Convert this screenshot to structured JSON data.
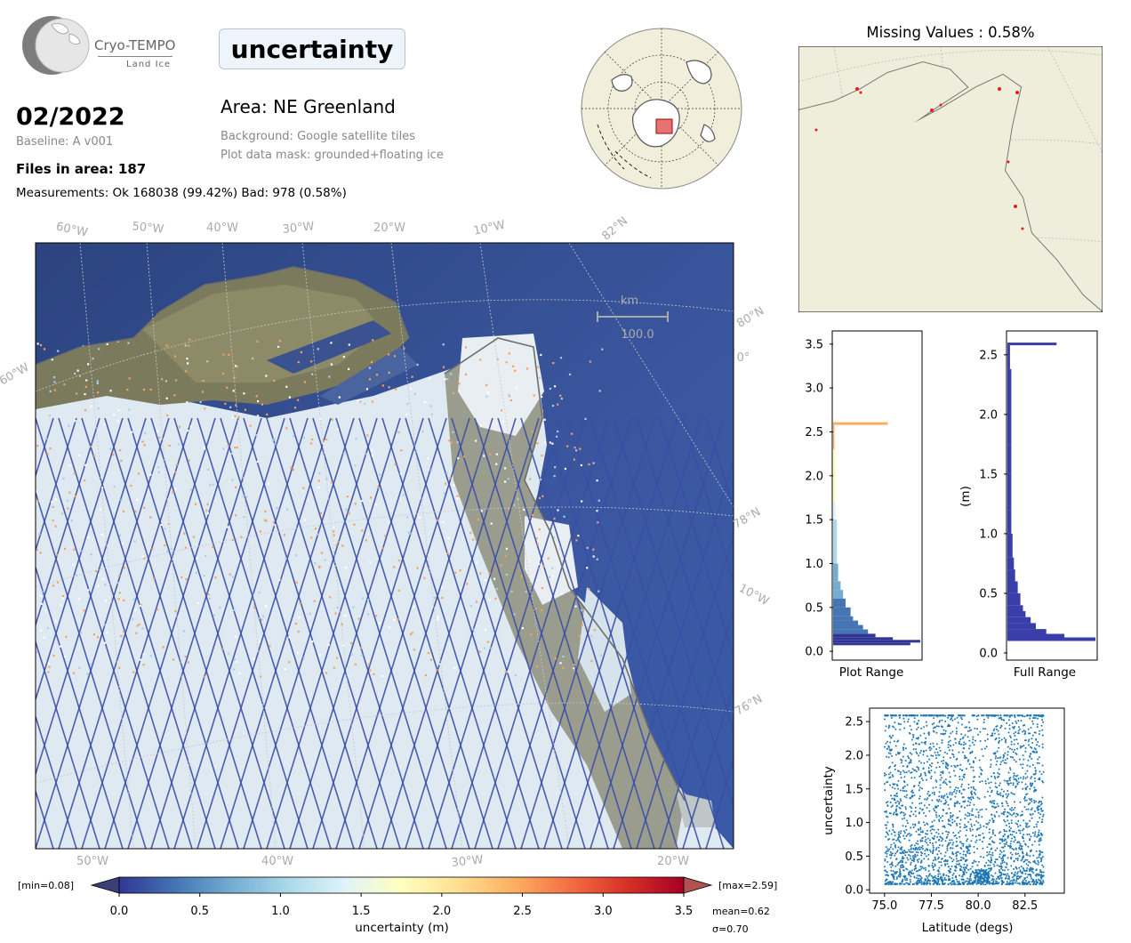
{
  "header": {
    "logo": {
      "name": "Cryo-TEMPO",
      "subtitle": "Land Ice"
    },
    "title": "uncertainty",
    "date": "02/2022",
    "baseline": "Baseline: A v001",
    "files_in_area": "Files in area: 187",
    "measurements": "Measurements: Ok 168038 (99.42%) Bad: 978 (0.58%)",
    "area": "Area: NE Greenland",
    "background": "Background: Google satellite tiles",
    "mask": "Plot data mask: grounded+floating ice"
  },
  "main_map": {
    "top_lon_labels": [
      "60°W",
      "50°W",
      "40°W",
      "30°W",
      "20°W",
      "10°W",
      "82°N"
    ],
    "bottom_lon_labels": [
      "50°W",
      "40°W",
      "30°W",
      "20°W"
    ],
    "left_labels": [
      "60°W"
    ],
    "right_labels": [
      "80°N",
      "0°",
      "78°N",
      "10°W",
      "76°N"
    ],
    "scale_bar": {
      "unit": "km",
      "value": "100.0"
    }
  },
  "missing_panel": {
    "title": "Missing Values : 0.58%"
  },
  "colorbar": {
    "min_label": "[min=0.08]",
    "max_label": "[max=2.59]",
    "ticks": [
      "0.0",
      "0.5",
      "1.0",
      "1.5",
      "2.0",
      "2.5",
      "3.0",
      "3.5"
    ],
    "label": "uncertainty (m)",
    "mean": "mean=0.62",
    "sigma": "σ=0.70",
    "cmap_colors": [
      "#313695",
      "#4575b4",
      "#74add1",
      "#abd9e9",
      "#e0f3f8",
      "#ffffbf",
      "#fee090",
      "#fdae61",
      "#f46d43",
      "#d73027",
      "#a50026"
    ]
  },
  "chart_data": [
    {
      "type": "bar",
      "orientation": "horizontal",
      "xlabel": "Plot Range",
      "ylabel": "",
      "ylim": [
        -0.1,
        3.65
      ],
      "y_ticks": [
        "0.0",
        "0.5",
        "1.0",
        "1.5",
        "2.0",
        "2.5",
        "3.0",
        "3.5"
      ],
      "bins": [
        0.07,
        0.1,
        0.13,
        0.16,
        0.2,
        0.25,
        0.3,
        0.35,
        0.4,
        0.5,
        0.6,
        0.7,
        0.8,
        1.0,
        1.2,
        1.5,
        1.7,
        2.3,
        2.58
      ],
      "values": [
        62,
        70,
        48,
        34,
        28,
        24,
        20,
        16,
        14,
        10,
        8,
        6,
        4,
        3,
        3,
        2,
        2,
        1,
        44
      ]
    },
    {
      "type": "bar",
      "orientation": "horizontal",
      "xlabel": "Full Range",
      "ylabel": "(m)",
      "ylim": [
        -0.06,
        2.7
      ],
      "y_ticks": [
        "0.0",
        "0.5",
        "1.0",
        "1.5",
        "2.0",
        "2.5"
      ],
      "bins": [
        0.1,
        0.13,
        0.16,
        0.2,
        0.25,
        0.3,
        0.35,
        0.4,
        0.5,
        0.6,
        0.7,
        0.8,
        1.0,
        1.2,
        1.5,
        1.75,
        2.38,
        2.58
      ],
      "values": [
        68,
        44,
        30,
        22,
        18,
        14,
        12,
        10,
        8,
        6,
        5,
        4,
        3,
        3,
        3,
        3,
        2,
        38
      ]
    },
    {
      "type": "scatter",
      "xlabel": "Latitude (degs)",
      "ylabel": "uncertainty",
      "xlim": [
        74.2,
        84.6
      ],
      "ylim": [
        -0.05,
        2.7
      ],
      "x_ticks": [
        "75.0",
        "77.5",
        "80.0",
        "82.5"
      ],
      "y_ticks": [
        "0.0",
        "0.5",
        "1.0",
        "1.5",
        "2.0",
        "2.5"
      ],
      "color": "#1f77b4",
      "x_range": [
        75.0,
        83.5
      ],
      "y_range": [
        0.08,
        2.59
      ]
    }
  ]
}
